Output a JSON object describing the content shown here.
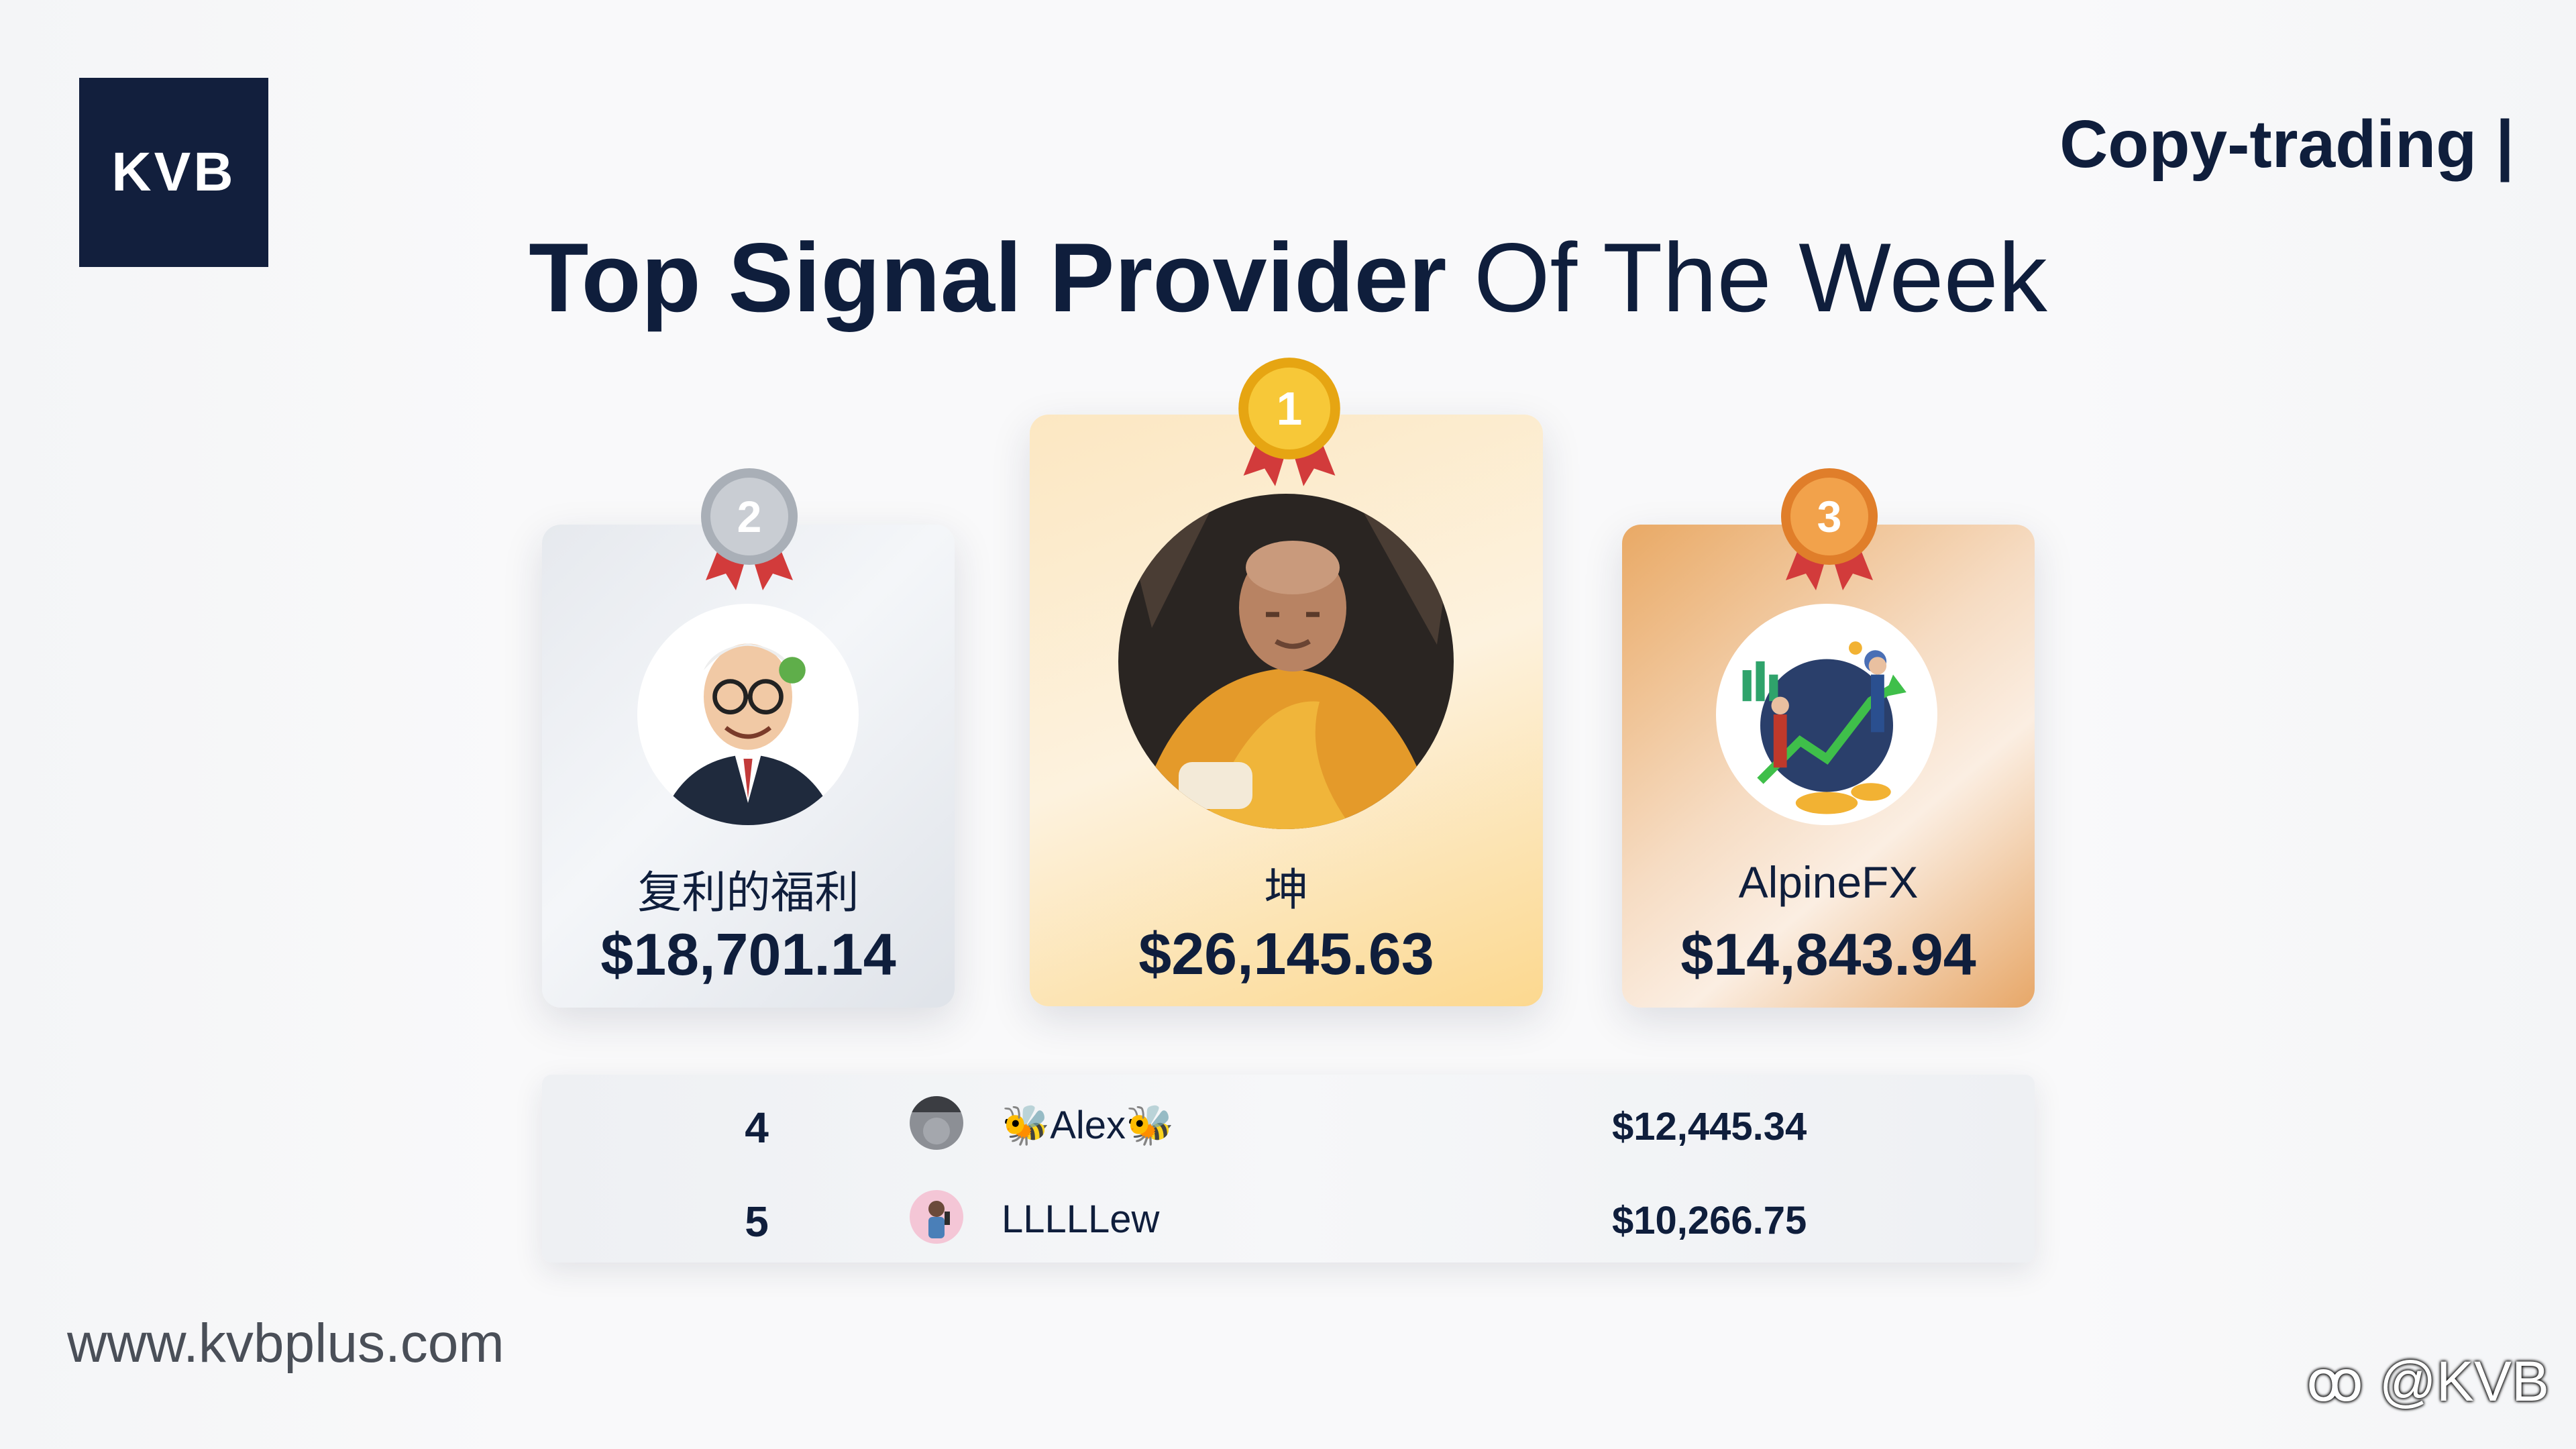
{
  "brand": {
    "logo_text": "KVB",
    "tag": "Copy-trading |",
    "website": "www.kvbplus.com",
    "watermark": "@KVB"
  },
  "headline": {
    "bold": "Top Signal Provider",
    "regular": "Of The Week"
  },
  "podium": [
    {
      "rank": "2",
      "name": "复利的福利",
      "amount": "$18,701.14",
      "medal_color": "#bfc4cb",
      "avatar_icon": "cartoon-investor-icon"
    },
    {
      "rank": "1",
      "name": "坤",
      "amount": "$26,145.63",
      "medal_color": "#f5b820",
      "avatar_icon": "monk-photo-icon"
    },
    {
      "rank": "3",
      "name": "AlpineFX",
      "amount": "$14,843.94",
      "medal_color": "#ea8f3c",
      "avatar_icon": "finance-illustration-icon"
    }
  ],
  "rankings": [
    {
      "rank": "4",
      "name": "🐝Alex🐝",
      "amount": "$12,445.34"
    },
    {
      "rank": "5",
      "name": "LLLLLew",
      "amount": "$10,266.75"
    }
  ],
  "colors": {
    "navy": "#0f1e3c",
    "ribbon": "#d23b3b"
  }
}
